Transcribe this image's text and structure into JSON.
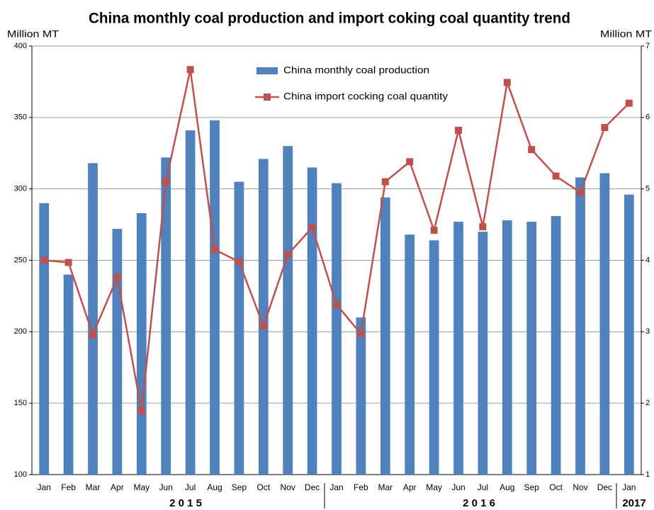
{
  "chart_data": {
    "type": "bar_line",
    "title": "China monthly coal production and import coking coal quantity trend",
    "y_label": "Million MT",
    "y2_label": "Million MT",
    "categories": [
      "Jan",
      "Feb",
      "Mar",
      "Apr",
      "May",
      "Jun",
      "Jul",
      "Aug",
      "Sep",
      "Oct",
      "Nov",
      "Dec",
      "Jan",
      "Feb",
      "Mar",
      "Apr",
      "May",
      "Jun",
      "Jul",
      "Aug",
      "Sep",
      "Oct",
      "Nov",
      "Dec",
      "Jan"
    ],
    "years": [
      "2 0 1 5",
      "2 0 1 6",
      "2017"
    ],
    "series": [
      {
        "name": "China monthly coal production",
        "type": "bar",
        "color": "#4f81bd",
        "values": [
          290,
          240,
          318,
          272,
          283,
          322,
          341,
          348,
          305,
          321,
          330,
          315,
          304,
          210,
          294,
          268,
          264,
          277,
          270,
          278,
          277,
          281,
          308,
          311,
          296
        ]
      },
      {
        "name": "China import cocking coal quantity",
        "type": "line",
        "axis": "y2",
        "color": "#c0504d",
        "values": [
          4.0,
          3.97,
          2.96,
          3.76,
          1.89,
          5.1,
          6.67,
          4.15,
          3.98,
          3.08,
          4.08,
          4.46,
          3.38,
          2.97,
          5.1,
          5.38,
          4.42,
          5.82,
          4.47,
          6.49,
          5.55,
          5.18,
          4.95,
          5.86,
          6.2
        ]
      }
    ],
    "ylim": [
      100,
      400
    ],
    "yticks": [
      100,
      150,
      200,
      250,
      300,
      350,
      400
    ],
    "y2lim": [
      1,
      7
    ],
    "y2ticks": [
      1,
      2,
      3,
      4,
      5,
      6,
      7
    ],
    "grid": true
  }
}
